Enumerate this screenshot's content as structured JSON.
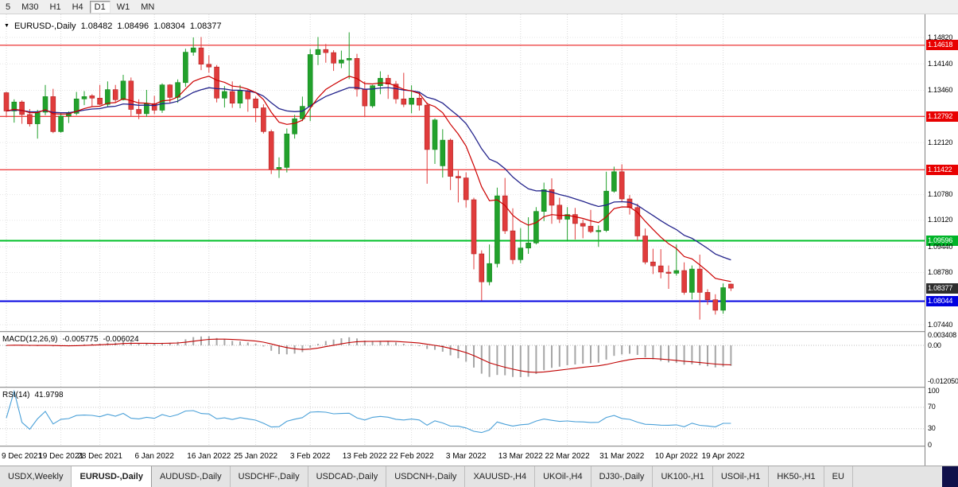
{
  "toolbar": {
    "timeframes": [
      "5",
      "M30",
      "H1",
      "H4",
      "D1",
      "W1",
      "MN"
    ],
    "selected": "D1"
  },
  "chart": {
    "header": {
      "symbol": "EURUSD-,Daily",
      "open": "1.08482",
      "high": "1.08496",
      "low": "1.08304",
      "close": "1.08377"
    }
  },
  "price_axis": {
    "labels": [
      {
        "text": "1.14820",
        "value": 1.1482,
        "type": "normal"
      },
      {
        "text": "1.14618",
        "value": 1.14618,
        "type": "red"
      },
      {
        "text": "1.14140",
        "value": 1.1414,
        "type": "normal"
      },
      {
        "text": "1.13460",
        "value": 1.1346,
        "type": "normal"
      },
      {
        "text": "1.12792",
        "value": 1.12792,
        "type": "red"
      },
      {
        "text": "1.12120",
        "value": 1.1212,
        "type": "normal"
      },
      {
        "text": "1.11422",
        "value": 1.11422,
        "type": "red"
      },
      {
        "text": "1.10780",
        "value": 1.1078,
        "type": "normal"
      },
      {
        "text": "1.10120",
        "value": 1.1012,
        "type": "normal"
      },
      {
        "text": "1.09596",
        "value": 1.09596,
        "type": "green"
      },
      {
        "text": "1.09440",
        "value": 1.0944,
        "type": "normal"
      },
      {
        "text": "1.08780",
        "value": 1.0878,
        "type": "normal"
      },
      {
        "text": "1.08377",
        "value": 1.08377,
        "type": "current"
      },
      {
        "text": "1.08044",
        "value": 1.08044,
        "type": "blue"
      },
      {
        "text": "1.07440",
        "value": 1.0744,
        "type": "normal"
      }
    ]
  },
  "chart_data": {
    "type": "candlestick",
    "title": "EURUSD-,Daily",
    "y_range": [
      1.07256,
      1.15413
    ],
    "colors": {
      "up": "#22a12c",
      "down": "#e03c3c",
      "up_border": "#128a1c",
      "down_border": "#b22222"
    },
    "x_ticks": [
      {
        "label": "9 Dec 2021",
        "index": 0
      },
      {
        "label": "19 Dec 2021",
        "index": 7
      },
      {
        "label": "28 Dec 2021",
        "index": 12
      },
      {
        "label": "6 Jan 2022",
        "index": 19
      },
      {
        "label": "16 Jan 2022",
        "index": 26
      },
      {
        "label": "25 Jan 2022",
        "index": 32
      },
      {
        "label": "3 Feb 2022",
        "index": 39
      },
      {
        "label": "13 Feb 2022",
        "index": 46
      },
      {
        "label": "22 Feb 2022",
        "index": 52
      },
      {
        "label": "3 Mar 2022",
        "index": 59
      },
      {
        "label": "13 Mar 2022",
        "index": 66
      },
      {
        "label": "22 Mar 2022",
        "index": 72
      },
      {
        "label": "31 Mar 2022",
        "index": 79
      },
      {
        "label": "10 Apr 2022",
        "index": 86
      },
      {
        "label": "19 Apr 2022",
        "index": 92
      }
    ],
    "candles": [
      [
        1.134,
        1.1342,
        1.1277,
        1.1293
      ],
      [
        1.1293,
        1.1323,
        1.1263,
        1.1316
      ],
      [
        1.1316,
        1.132,
        1.126,
        1.1284
      ],
      [
        1.1284,
        1.1298,
        1.1253,
        1.126
      ],
      [
        1.126,
        1.1296,
        1.1222,
        1.129
      ],
      [
        1.129,
        1.136,
        1.1282,
        1.133
      ],
      [
        1.133,
        1.135,
        1.1236,
        1.124
      ],
      [
        1.124,
        1.1288,
        1.1237,
        1.128
      ],
      [
        1.128,
        1.1292,
        1.1262,
        1.1287
      ],
      [
        1.1287,
        1.1342,
        1.1282,
        1.1324
      ],
      [
        1.1324,
        1.1344,
        1.1308,
        1.133
      ],
      [
        1.1332,
        1.1336,
        1.1305,
        1.1326
      ],
      [
        1.1326,
        1.136,
        1.1308,
        1.131
      ],
      [
        1.131,
        1.1369,
        1.1304,
        1.1348
      ],
      [
        1.1348,
        1.136,
        1.1316,
        1.1322
      ],
      [
        1.1322,
        1.1386,
        1.132,
        1.137
      ],
      [
        1.137,
        1.1379,
        1.1279,
        1.1297
      ],
      [
        1.1297,
        1.1323,
        1.1272,
        1.1286
      ],
      [
        1.1286,
        1.1347,
        1.1278,
        1.1312
      ],
      [
        1.1312,
        1.1332,
        1.1285,
        1.1295
      ],
      [
        1.1295,
        1.1364,
        1.1288,
        1.136
      ],
      [
        1.136,
        1.1362,
        1.1313,
        1.1328
      ],
      [
        1.1328,
        1.1374,
        1.1314,
        1.1366
      ],
      [
        1.1366,
        1.1453,
        1.1355,
        1.1444
      ],
      [
        1.1444,
        1.1482,
        1.1435,
        1.1455
      ],
      [
        1.1455,
        1.1483,
        1.1398,
        1.1413
      ],
      [
        1.1413,
        1.1436,
        1.1391,
        1.1406
      ],
      [
        1.1406,
        1.1411,
        1.1315,
        1.1326
      ],
      [
        1.1326,
        1.1357,
        1.1302,
        1.1343
      ],
      [
        1.1343,
        1.1369,
        1.1301,
        1.1313
      ],
      [
        1.1313,
        1.136,
        1.13,
        1.1345
      ],
      [
        1.1345,
        1.1349,
        1.1291,
        1.1324
      ],
      [
        1.1324,
        1.133,
        1.1264,
        1.1301
      ],
      [
        1.1301,
        1.131,
        1.1235,
        1.124
      ],
      [
        1.124,
        1.1245,
        1.1131,
        1.1144
      ],
      [
        1.1144,
        1.1174,
        1.1121,
        1.1148
      ],
      [
        1.1148,
        1.1248,
        1.1135,
        1.1234
      ],
      [
        1.1234,
        1.1283,
        1.1222,
        1.1273
      ],
      [
        1.1273,
        1.133,
        1.1267,
        1.1305
      ],
      [
        1.1305,
        1.1452,
        1.1267,
        1.1438
      ],
      [
        1.1438,
        1.1483,
        1.1411,
        1.1451
      ],
      [
        1.1451,
        1.1465,
        1.1417,
        1.1443
      ],
      [
        1.1443,
        1.1449,
        1.1396,
        1.1416
      ],
      [
        1.1416,
        1.1448,
        1.1403,
        1.1424
      ],
      [
        1.1424,
        1.1495,
        1.1375,
        1.1428
      ],
      [
        1.1428,
        1.144,
        1.133,
        1.1349
      ],
      [
        1.1349,
        1.1369,
        1.1278,
        1.1306
      ],
      [
        1.1306,
        1.136,
        1.1301,
        1.1358
      ],
      [
        1.1358,
        1.1395,
        1.1336,
        1.1377
      ],
      [
        1.1377,
        1.1386,
        1.1324,
        1.1362
      ],
      [
        1.1362,
        1.137,
        1.1312,
        1.1324
      ],
      [
        1.1324,
        1.1391,
        1.1303,
        1.131
      ],
      [
        1.131,
        1.1359,
        1.1287,
        1.1326
      ],
      [
        1.1326,
        1.1343,
        1.1294,
        1.1308
      ],
      [
        1.1308,
        1.1315,
        1.1106,
        1.1194
      ],
      [
        1.1194,
        1.1274,
        1.1157,
        1.127
      ],
      [
        1.1152,
        1.1246,
        1.1122,
        1.1218
      ],
      [
        1.1218,
        1.1222,
        1.109,
        1.1125
      ],
      [
        1.1125,
        1.114,
        1.1058,
        1.1121
      ],
      [
        1.1121,
        1.1135,
        1.1045,
        1.1065
      ],
      [
        1.1065,
        1.107,
        1.0886,
        1.0926
      ],
      [
        1.0926,
        1.0935,
        1.0806,
        1.0854
      ],
      [
        1.0854,
        1.095,
        1.0845,
        1.0901
      ],
      [
        1.0901,
        1.1096,
        1.0891,
        1.1075
      ],
      [
        1.1075,
        1.1121,
        1.0977,
        1.0985
      ],
      [
        1.0985,
        1.1043,
        1.09,
        1.0911
      ],
      [
        1.0911,
        1.0992,
        1.0902,
        1.0941
      ],
      [
        1.0941,
        1.102,
        1.0926,
        1.0954
      ],
      [
        1.0954,
        1.1046,
        1.095,
        1.1035
      ],
      [
        1.1035,
        1.1109,
        1.101,
        1.1091
      ],
      [
        1.1091,
        1.112,
        1.1003,
        1.1051
      ],
      [
        1.1051,
        1.107,
        1.1005,
        1.1015
      ],
      [
        1.1015,
        1.1046,
        1.0961,
        1.1027
      ],
      [
        1.1027,
        1.1044,
        1.0963,
        1.1004
      ],
      [
        1.1004,
        1.1014,
        1.0966,
        1.0997
      ],
      [
        1.0997,
        1.1039,
        1.0979,
        1.0983
      ],
      [
        1.0983,
        1.0999,
        1.0944,
        1.0986
      ],
      [
        1.0986,
        1.1137,
        1.0982,
        1.1087
      ],
      [
        1.1087,
        1.115,
        1.1083,
        1.1137
      ],
      [
        1.1137,
        1.1156,
        1.106,
        1.1067
      ],
      [
        1.1067,
        1.1077,
        1.1027,
        1.1045
      ],
      [
        1.1045,
        1.1055,
        1.096,
        1.0972
      ],
      [
        1.0972,
        1.0991,
        1.0899,
        1.0905
      ],
      [
        1.0905,
        1.0939,
        1.0874,
        1.0895
      ],
      [
        1.0895,
        1.0938,
        1.0863,
        1.0879
      ],
      [
        1.0879,
        1.0896,
        1.0836,
        1.0876
      ],
      [
        1.0876,
        1.095,
        1.087,
        1.0883
      ],
      [
        1.0883,
        1.0904,
        1.0821,
        1.0827
      ],
      [
        1.0827,
        1.0896,
        1.0809,
        1.0887
      ],
      [
        1.0887,
        1.0924,
        1.0757,
        1.0827
      ],
      [
        1.0827,
        1.0835,
        1.0795,
        1.0808
      ],
      [
        1.0808,
        1.0822,
        1.077,
        1.0781
      ],
      [
        1.0781,
        1.085,
        1.0772,
        1.0839
      ],
      [
        1.08482,
        1.08496,
        1.08304,
        1.08377
      ]
    ],
    "overlays": {
      "ma_fast": {
        "type": "ema",
        "period": 10,
        "color": "#cc0000"
      },
      "ma_slow": {
        "type": "ema",
        "period": 21,
        "color": "#24248c"
      }
    },
    "hlines": [
      {
        "price": 1.14618,
        "color": "#e80000",
        "width": 1
      },
      {
        "price": 1.12792,
        "color": "#e80000",
        "width": 1
      },
      {
        "price": 1.11422,
        "color": "#e80000",
        "width": 1
      },
      {
        "price": 1.09596,
        "color": "#00c028",
        "width": 2
      },
      {
        "price": 1.08044,
        "color": "#0000e0",
        "width": 2
      }
    ],
    "current_price": 1.08377,
    "macd": {
      "label": "MACD(12,26,9)",
      "value_main": "-0.005775",
      "value_signal": "-0.006024",
      "params": [
        12,
        26,
        9
      ],
      "axis": [
        {
          "text": "0.003408",
          "value": 0.003408
        },
        {
          "text": "0.00",
          "value": 0
        },
        {
          "text": "-0.012050",
          "value": -0.01205
        }
      ],
      "range": [
        -0.01366,
        0.00393
      ],
      "histogram_color": "#a6a6a6",
      "signal_color": "#c00000"
    },
    "rsi": {
      "label": "RSI(14)",
      "value": "41.9798",
      "period": 14,
      "axis": [
        {
          "text": "100",
          "value": 100
        },
        {
          "text": "70",
          "value": 70
        },
        {
          "text": "30",
          "value": 30
        },
        {
          "text": "0",
          "value": 0
        }
      ],
      "levels": [
        70,
        30
      ],
      "range": [
        -1.5,
        104
      ],
      "color": "#4aa0d8"
    }
  },
  "tabs": {
    "items": [
      "USDX,Weekly",
      "EURUSD-,Daily",
      "AUDUSD-,Daily",
      "USDCHF-,Daily",
      "USDCAD-,Daily",
      "USDCNH-,Daily",
      "XAUUSD-,H4",
      "UKOil-,H4",
      "DJ30-,Daily",
      "UK100-,H1",
      "USOil-,H1",
      "HK50-,H1",
      "EU"
    ],
    "active": "EURUSD-,Daily"
  }
}
